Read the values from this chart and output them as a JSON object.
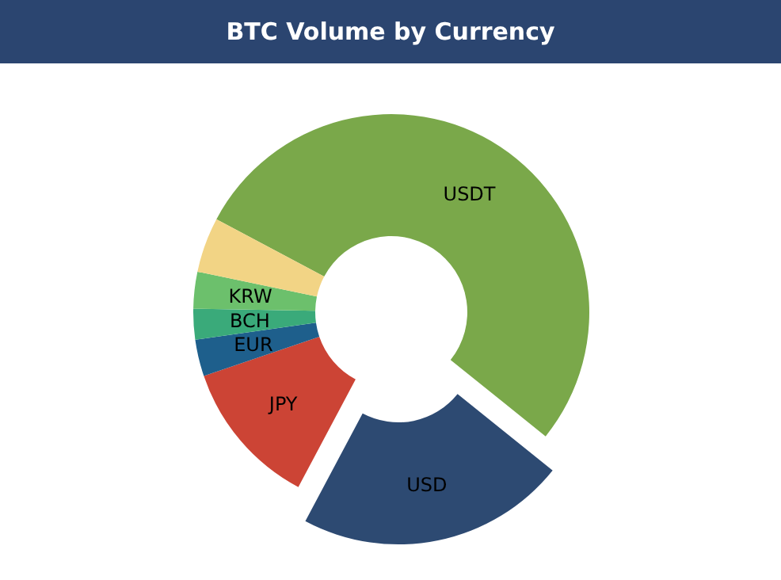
{
  "chart_data": {
    "type": "donut",
    "title": "BTC Volume by Currency",
    "categories": [
      "USDT",
      "USD",
      "JPY",
      "EUR",
      "BCH",
      "KRW",
      null
    ],
    "values": [
      53,
      22,
      12,
      3,
      2.5,
      3,
      4.5
    ],
    "colors": [
      "#7aa84a",
      "#2d4a72",
      "#cc4435",
      "#1e5f8c",
      "#3aaa7a",
      "#6cc06c",
      "#f2d485"
    ]
  }
}
